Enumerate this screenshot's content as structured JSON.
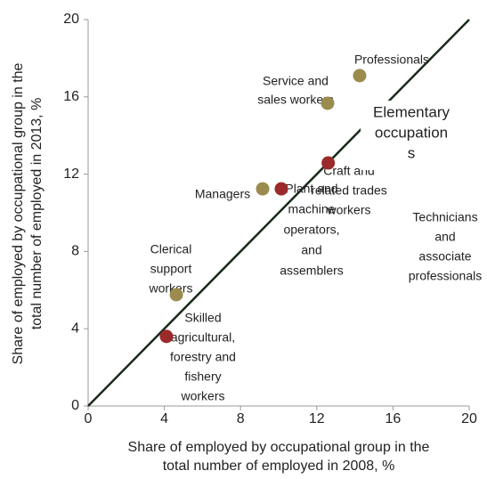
{
  "chart_data": {
    "type": "scatter",
    "x_title": [
      "Share of employed by occupational group in the",
      "total number of employed in 2008, %"
    ],
    "y_title": [
      "Share of employed by occupational group in the",
      "total number of employed in 2013, %"
    ],
    "xlim": [
      0,
      20
    ],
    "ylim": [
      0,
      20
    ],
    "xticks": [
      0,
      4,
      8,
      12,
      16,
      20
    ],
    "yticks": [
      0,
      4,
      8,
      12,
      16,
      20
    ],
    "reference_line": {
      "x": [
        0,
        20
      ],
      "y": [
        0,
        20
      ],
      "color": "#1a2a1a"
    },
    "points": [
      {
        "label": [
          "Professionals"
        ],
        "x": 14.25,
        "y": 17.1,
        "color": "#9b8b4e"
      },
      {
        "label": [
          "Service and",
          "sales workers"
        ],
        "x": 12.57,
        "y": 15.67,
        "color": "#9b8b4e"
      },
      {
        "label": [
          "Craft and",
          "related trades",
          "workers"
        ],
        "x": 12.6,
        "y": 12.58,
        "color": "#9b2a2a"
      },
      {
        "label": [
          "Managers"
        ],
        "x": 9.16,
        "y": 11.24,
        "color": "#9b8b4e"
      },
      {
        "label": [
          "Plant and",
          "machine",
          "operators,",
          "and",
          "assemblers"
        ],
        "x": 10.14,
        "y": 11.24,
        "color": "#9b2a2a"
      },
      {
        "label": [
          "Clerical",
          "support",
          "workers"
        ],
        "x": 4.63,
        "y": 5.76,
        "color": "#9b8b4e"
      },
      {
        "label": [
          "Skilled",
          "agricultural,",
          "forestry and",
          "fishery",
          "workers"
        ],
        "x": 4.11,
        "y": 3.6,
        "color": "#9b2a2a"
      }
    ],
    "extra_labels": [
      [
        "Technicians",
        "and",
        "associate",
        "professionals"
      ]
    ],
    "callout": [
      "Elementary",
      "occupation",
      "s"
    ]
  }
}
